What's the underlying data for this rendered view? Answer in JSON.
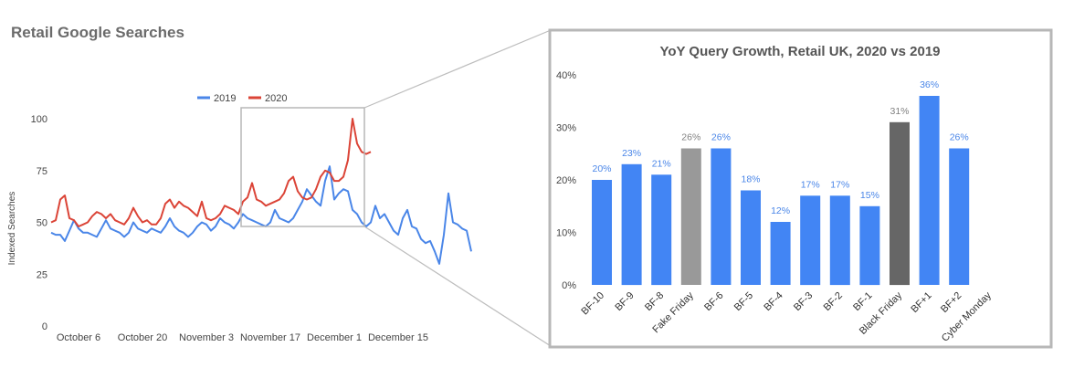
{
  "title": "Retail Google Searches",
  "colors": {
    "y2019": "#4a86e8",
    "y2020": "#db4437",
    "bar_blue": "#4285f4",
    "bar_light_grey": "#999999",
    "bar_dark_grey": "#666666",
    "value_blue": "#4a86e8",
    "value_grey": "#808080",
    "frame": "#b7b7b7"
  },
  "chart_data": [
    {
      "type": "line",
      "title": "Retail Google Searches",
      "ylabel": "Indexed Searches",
      "xlabel": "",
      "ylim": [
        0,
        100
      ],
      "yticks": [
        0,
        25,
        50,
        75,
        100
      ],
      "xtick_labels": [
        "October 6",
        "October 20",
        "November 3",
        "November 17",
        "December 1",
        "December 15"
      ],
      "legend": {
        "placement": "top-center",
        "entries": [
          "2019",
          "2020"
        ]
      },
      "x_start": "2019-09-30",
      "series": [
        {
          "name": "2019",
          "values": [
            45,
            44,
            44,
            41,
            46,
            51,
            47,
            45,
            45,
            44,
            43,
            47,
            51,
            47,
            46,
            45,
            43,
            45,
            50,
            47,
            46,
            45,
            47,
            46,
            45,
            48,
            52,
            48,
            46,
            45,
            43,
            45,
            48,
            50,
            49,
            46,
            48,
            52,
            50,
            49,
            47,
            50,
            54,
            52,
            51,
            50,
            49,
            48,
            50,
            56,
            52,
            51,
            50,
            52,
            56,
            60,
            66,
            63,
            60,
            58,
            70,
            77,
            61,
            64,
            66,
            65,
            56,
            54,
            50,
            48,
            50,
            58,
            52,
            54,
            50,
            46,
            44,
            52,
            56,
            48,
            47,
            42,
            40,
            41,
            36,
            30,
            44,
            64,
            50,
            49,
            47,
            46,
            36
          ]
        },
        {
          "name": "2020",
          "values": [
            50,
            51,
            61,
            63,
            52,
            51,
            48,
            49,
            50,
            53,
            55,
            54,
            52,
            54,
            51,
            50,
            49,
            52,
            57,
            53,
            50,
            51,
            49,
            49,
            52,
            59,
            61,
            57,
            60,
            58,
            57,
            55,
            53,
            60,
            52,
            51,
            52,
            54,
            58,
            57,
            56,
            54,
            60,
            62,
            69,
            61,
            60,
            58,
            59,
            60,
            61,
            64,
            70,
            72,
            65,
            62,
            61,
            62,
            66,
            72,
            75,
            74,
            70,
            70,
            72,
            80,
            100,
            88,
            84,
            83,
            84
          ]
        }
      ]
    },
    {
      "type": "bar",
      "title": "YoY Query Growth, Retail UK, 2020 vs 2019",
      "ylim": [
        0,
        40
      ],
      "ytick_labels": [
        "0%",
        "10%",
        "20%",
        "30%",
        "40%"
      ],
      "categories": [
        "BF-10",
        "BF-9",
        "BF-8",
        "Fake Friday",
        "BF-6",
        "BF-5",
        "BF-4",
        "BF-3",
        "BF-2",
        "BF-1",
        "Black Friday",
        "BF+1",
        "BF+2",
        "Cyber Monday"
      ],
      "values": [
        20,
        23,
        21,
        26,
        26,
        18,
        12,
        17,
        17,
        15,
        31,
        36,
        26,
        null
      ],
      "value_labels": [
        "20%",
        "23%",
        "21%",
        "26%",
        "26%",
        "18%",
        "12%",
        "17%",
        "17%",
        "15%",
        "31%",
        "36%",
        "26%",
        ""
      ],
      "bar_color_keys": [
        "bar_blue",
        "bar_blue",
        "bar_blue",
        "bar_light_grey",
        "bar_blue",
        "bar_blue",
        "bar_blue",
        "bar_blue",
        "bar_blue",
        "bar_blue",
        "bar_dark_grey",
        "bar_blue",
        "bar_blue",
        "bar_blue"
      ],
      "label_color_keys": [
        "value_blue",
        "value_blue",
        "value_blue",
        "value_grey",
        "value_blue",
        "value_blue",
        "value_blue",
        "value_blue",
        "value_blue",
        "value_blue",
        "value_grey",
        "value_blue",
        "value_blue",
        "value_blue"
      ]
    }
  ]
}
